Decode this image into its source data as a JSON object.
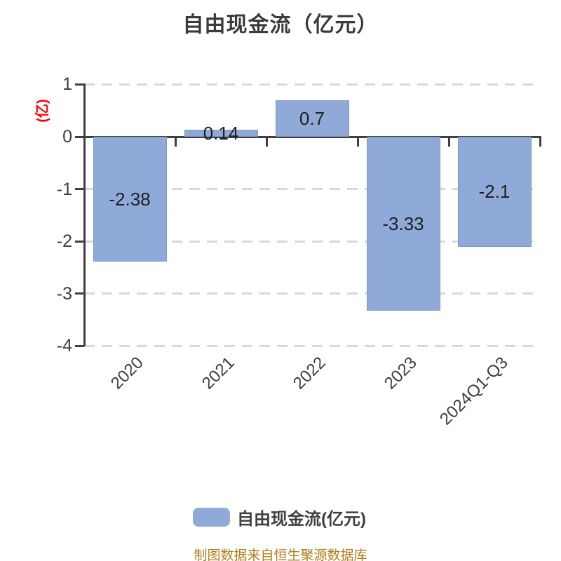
{
  "title": "自由现金流（亿元）",
  "y_axis_label": "(亿)",
  "footer": "制图数据来自恒生聚源数据库",
  "legend": {
    "label": "自由现金流(亿元)",
    "swatch_color": "#8faad9"
  },
  "colors": {
    "bar_fill": "#8faad9",
    "bar_border": "#7d98c7",
    "axis": "#404040",
    "grid": "#d8d8d8",
    "title_text": "#3b3b3b",
    "tick_label": "#3d3d3d",
    "value_label": "#1f1f1f",
    "y_axis_label": "#ff0000",
    "footer_text": "#b07d1a"
  },
  "chart_data": {
    "type": "bar",
    "title": "自由现金流（亿元）",
    "ylabel": "(亿)",
    "categories": [
      "2020",
      "2021",
      "2022",
      "2023",
      "2024Q1-Q3"
    ],
    "values": [
      -2.38,
      0.14,
      0.7,
      -3.33,
      -2.1
    ],
    "value_labels": [
      "-2.38",
      "0.14",
      "0.7",
      "-3.33",
      "-2.1"
    ],
    "ylim": [
      -4,
      1
    ],
    "y_ticks": [
      1,
      0,
      -1,
      -2,
      -3,
      -4
    ],
    "y_tick_labels": [
      "1",
      "0",
      "-1",
      "-2",
      "-3",
      "-4"
    ],
    "grid": "horizontal-dashed",
    "x_axis_on_zero": true,
    "legend_position": "bottom",
    "series_name": "自由现金流(亿元)"
  }
}
